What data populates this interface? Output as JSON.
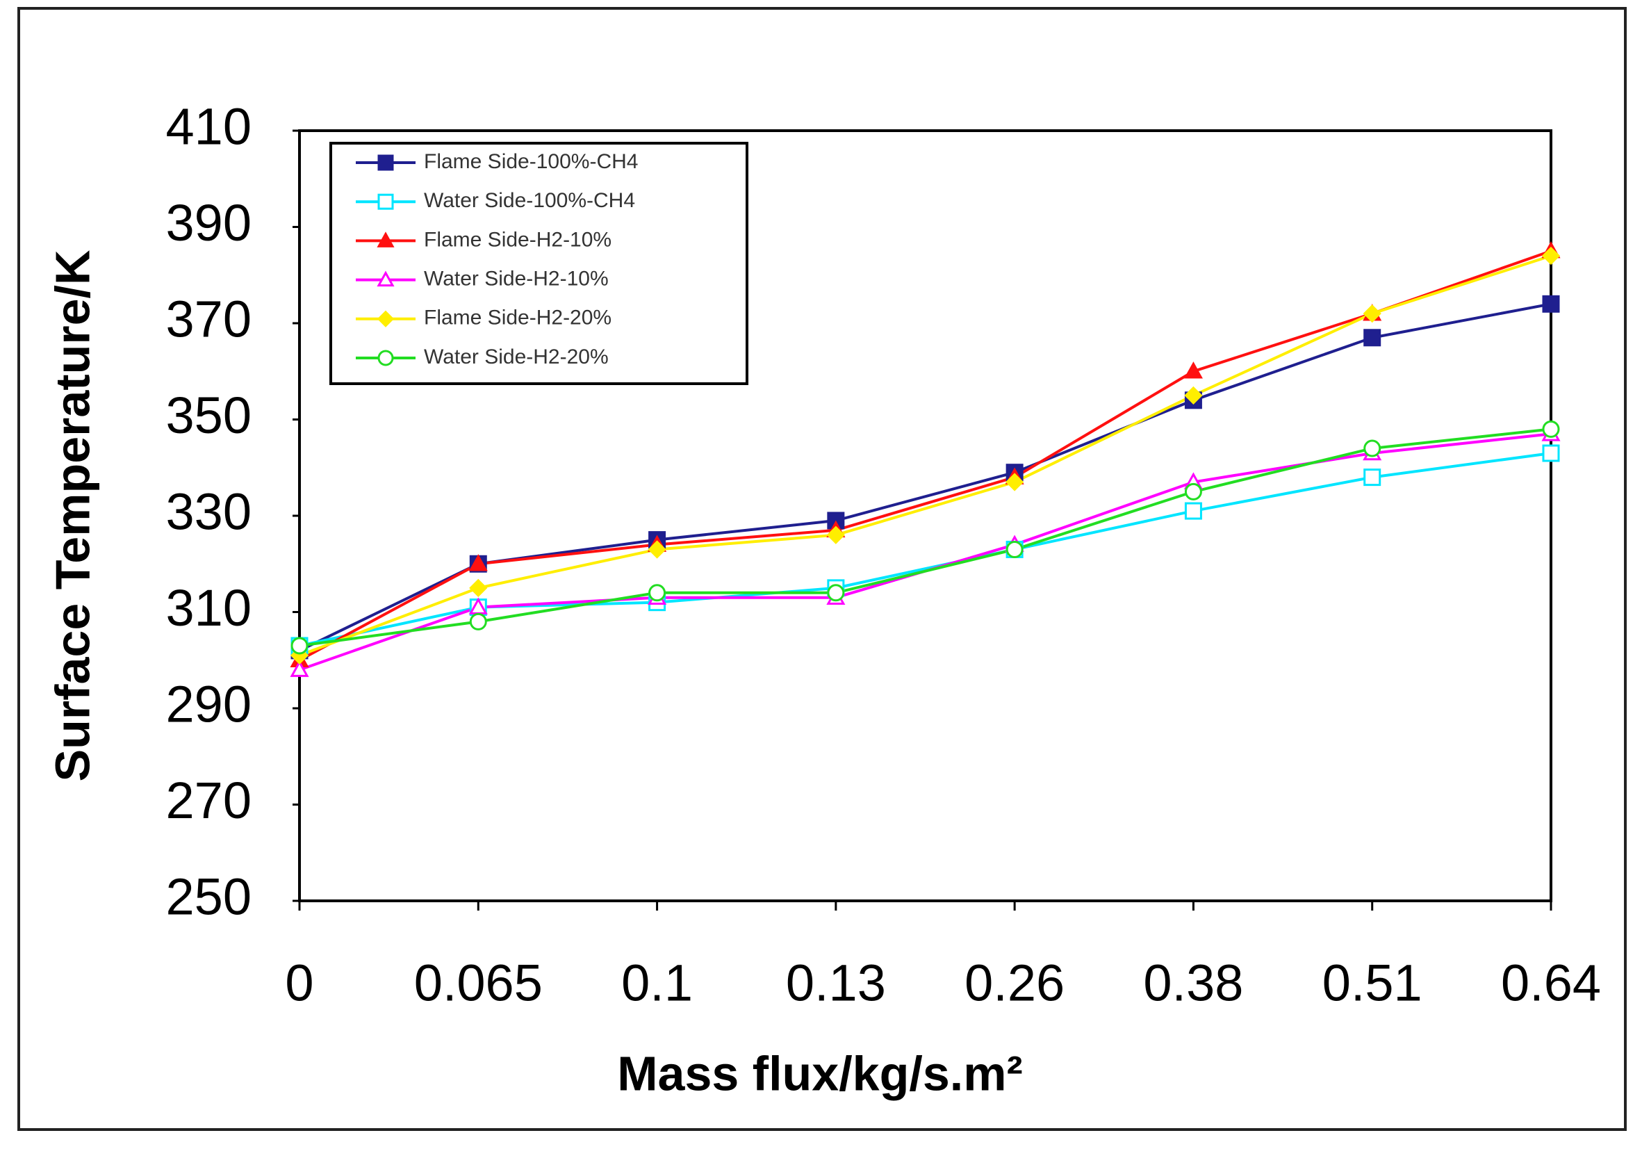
{
  "chart_data": {
    "type": "line",
    "x_label": "Mass flux/kg/s.m²",
    "y_label": "Surface Temperature/K",
    "categories": [
      "0",
      "0.065",
      "0.1",
      "0.13",
      "0.26",
      "0.38",
      "0.51",
      "0.64"
    ],
    "ylim": [
      250,
      410
    ],
    "yticks": [
      250,
      270,
      290,
      310,
      330,
      350,
      370,
      390,
      410
    ],
    "grid": false,
    "legend": "upper left",
    "series": [
      {
        "name": "Flame Side-100%-CH4",
        "color": "#1f1f8f",
        "marker": "square",
        "filled": true,
        "values": [
          302,
          320,
          325,
          329,
          339,
          354,
          367,
          374
        ]
      },
      {
        "name": "Water Side-100%-CH4",
        "color": "#00e5ff",
        "marker": "square",
        "filled": false,
        "values": [
          303,
          311,
          312,
          315,
          323,
          331,
          338,
          343
        ]
      },
      {
        "name": "Flame Side-H2-10%",
        "color": "#ff1010",
        "marker": "triangle",
        "filled": true,
        "values": [
          300,
          320,
          324,
          327,
          338,
          360,
          372,
          385
        ]
      },
      {
        "name": "Water Side-H2-10%",
        "color": "#ff00ff",
        "marker": "triangle",
        "filled": false,
        "values": [
          298,
          311,
          313,
          313,
          324,
          337,
          343,
          347
        ]
      },
      {
        "name": "Flame Side-H2-20%",
        "color": "#ffee00",
        "marker": "diamond",
        "filled": true,
        "values": [
          301,
          315,
          323,
          326,
          337,
          355,
          372,
          384
        ]
      },
      {
        "name": "Water Side-H2-20%",
        "color": "#22dd22",
        "marker": "circle",
        "filled": false,
        "values": [
          303,
          308,
          314,
          314,
          323,
          335,
          344,
          348
        ]
      }
    ]
  }
}
